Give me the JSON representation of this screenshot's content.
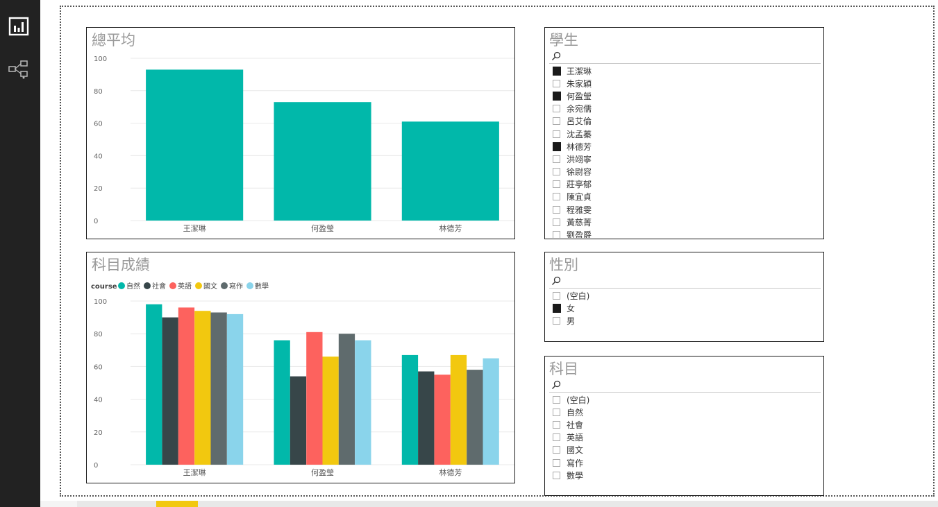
{
  "nav": {
    "report_icon": "bar-chart-report-icon",
    "model_icon": "relationships-model-icon"
  },
  "charts": {
    "avg": {
      "title": "總平均",
      "chart_data": {
        "type": "bar",
        "title": "總平均",
        "categories": [
          "王潔琳",
          "何盈瑩",
          "林德芳"
        ],
        "values": [
          93,
          73,
          61
        ],
        "ylim": [
          0,
          100
        ],
        "yticks": [
          "0",
          "20",
          "40",
          "60",
          "80",
          "100"
        ],
        "grid": true,
        "color": "#01b8aa"
      }
    },
    "subject": {
      "title": "科目成績",
      "chart_data": {
        "type": "bar",
        "title": "科目成績",
        "legend_title": "course",
        "legend_position": "top-left",
        "categories": [
          "王潔琳",
          "何盈瑩",
          "林德芳"
        ],
        "ylim": [
          0,
          100
        ],
        "yticks": [
          "0",
          "20",
          "40",
          "60",
          "80",
          "100"
        ],
        "grid": true,
        "series": [
          {
            "name": "自然",
            "color": "#01b8aa",
            "values": [
              98,
              76,
              67
            ]
          },
          {
            "name": "社會",
            "color": "#374649",
            "values": [
              90,
              54,
              57
            ]
          },
          {
            "name": "英語",
            "color": "#fd625e",
            "values": [
              96,
              81,
              55
            ]
          },
          {
            "name": "國文",
            "color": "#f2c80f",
            "values": [
              94,
              66,
              67
            ]
          },
          {
            "name": "寫作",
            "color": "#5f6b6d",
            "values": [
              93,
              80,
              58
            ]
          },
          {
            "name": "數學",
            "color": "#8ad4eb",
            "values": [
              92,
              76,
              65
            ]
          }
        ]
      }
    }
  },
  "slicers": {
    "students": {
      "title": "學生",
      "search_icon": "search-icon",
      "items": [
        {
          "label": "王潔琳",
          "checked": true
        },
        {
          "label": "朱家穎",
          "checked": false
        },
        {
          "label": "何盈瑩",
          "checked": true
        },
        {
          "label": "余宛儒",
          "checked": false
        },
        {
          "label": "呂艾倫",
          "checked": false
        },
        {
          "label": "沈孟蓁",
          "checked": false
        },
        {
          "label": "林德芳",
          "checked": true
        },
        {
          "label": "洪翊寧",
          "checked": false
        },
        {
          "label": "徐尉容",
          "checked": false
        },
        {
          "label": "莊亭郁",
          "checked": false
        },
        {
          "label": "陳宜貞",
          "checked": false
        },
        {
          "label": "程雅雯",
          "checked": false
        },
        {
          "label": "黃慈菁",
          "checked": false
        },
        {
          "label": "劉盈爵",
          "checked": false
        }
      ]
    },
    "gender": {
      "title": "性別",
      "search_icon": "search-icon",
      "items": [
        {
          "label": "(空白)",
          "checked": false
        },
        {
          "label": "女",
          "checked": true
        },
        {
          "label": "男",
          "checked": false
        }
      ]
    },
    "subject": {
      "title": "科目",
      "search_icon": "search-icon",
      "items": [
        {
          "label": "(空白)",
          "checked": false
        },
        {
          "label": "自然",
          "checked": false
        },
        {
          "label": "社會",
          "checked": false
        },
        {
          "label": "英語",
          "checked": false
        },
        {
          "label": "國文",
          "checked": false
        },
        {
          "label": "寫作",
          "checked": false
        },
        {
          "label": "數學",
          "checked": false
        }
      ]
    }
  }
}
